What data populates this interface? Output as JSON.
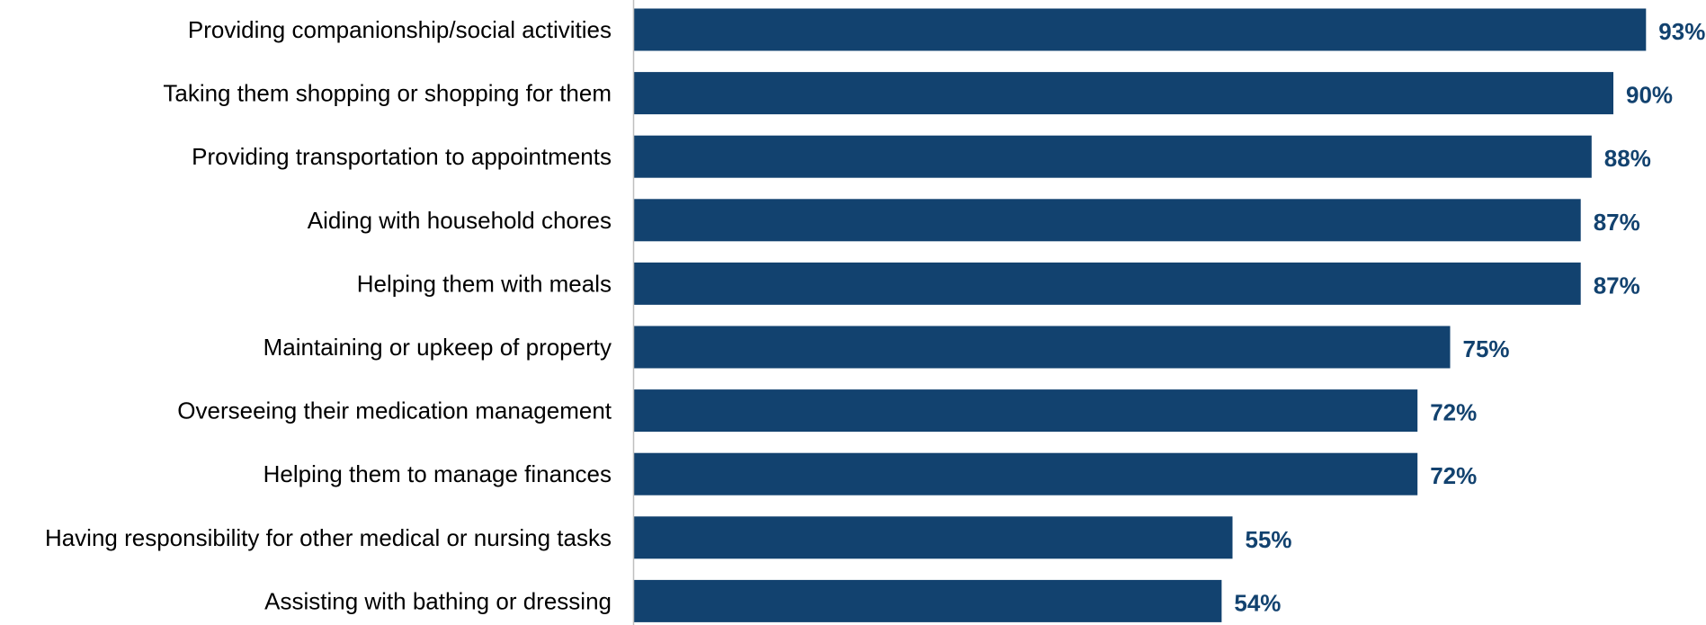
{
  "chart_data": {
    "type": "bar",
    "orientation": "horizontal",
    "categories": [
      "Providing companionship/social activities",
      "Taking them shopping or shopping for them",
      "Providing transportation to appointments",
      "Aiding with household chores",
      "Helping them with meals",
      "Maintaining or upkeep of property",
      "Overseeing their medication management",
      "Helping them to manage finances",
      "Having responsibility for other medical or nursing tasks",
      "Assisting with bathing or dressing"
    ],
    "values": [
      93,
      90,
      88,
      87,
      87,
      75,
      72,
      72,
      55,
      54
    ],
    "value_labels": [
      "93%",
      "90%",
      "88%",
      "87%",
      "87%",
      "75%",
      "72%",
      "72%",
      "55%",
      "54%"
    ],
    "xlim": [
      0,
      100
    ],
    "grid": false,
    "legend": "none",
    "title": "",
    "xlabel": "",
    "ylabel": "",
    "colors": {
      "bar": "#12426f",
      "value_label": "#12426f",
      "axis_line": "#bfbfbf",
      "category_label": "#000000"
    }
  }
}
